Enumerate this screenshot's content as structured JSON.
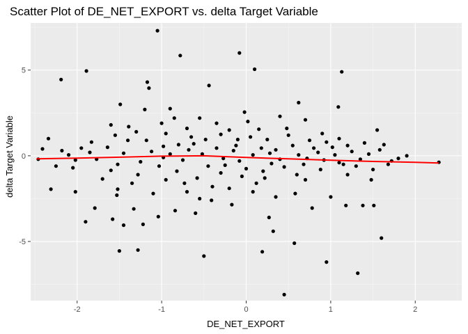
{
  "chart_data": {
    "type": "scatter",
    "title": "Scatter Plot of DE_NET_EXPORT vs. delta Target Variable",
    "xlabel": "DE_NET_EXPORT",
    "ylabel": "delta Target Variable",
    "xlim": [
      -2.55,
      2.55
    ],
    "ylim": [
      -8.45,
      7.75
    ],
    "x_ticks": [
      -2,
      -1,
      0,
      1,
      2
    ],
    "x_tick_labels": [
      "-2",
      "-1",
      "0",
      "1",
      "2"
    ],
    "y_ticks": [
      -5,
      0,
      5
    ],
    "y_tick_labels": [
      "-5",
      "0",
      "5"
    ],
    "grid": true,
    "legend": "none",
    "colors": {
      "panel_background": "#ebebeb",
      "grid_major": "#ffffff",
      "grid_minor": "#f5f5f5",
      "points": "#000000",
      "trend_line": "#ff0000"
    },
    "trend_line": {
      "x": [
        -2.48,
        -2.0,
        -1.5,
        -1.0,
        -0.5,
        0.0,
        0.5,
        1.0,
        1.5,
        2.0,
        2.28
      ],
      "y": [
        -0.18,
        -0.14,
        -0.08,
        -0.02,
        0.0,
        -0.1,
        -0.18,
        -0.26,
        -0.33,
        -0.38,
        -0.42
      ]
    },
    "series": [
      {
        "points": [
          [
            -1.05,
            7.3
          ],
          [
            -0.78,
            5.85
          ],
          [
            -0.08,
            6.0
          ],
          [
            0.1,
            5.05
          ],
          [
            1.13,
            4.9
          ],
          [
            -1.89,
            4.95
          ],
          [
            -2.19,
            4.45
          ],
          [
            -0.44,
            4.1
          ],
          [
            -1.15,
            3.95
          ],
          [
            -1.17,
            4.3
          ],
          [
            1.09,
            2.85
          ],
          [
            0.62,
            3.1
          ],
          [
            -1.49,
            3.0
          ],
          [
            -0.9,
            2.75
          ],
          [
            -0.02,
            2.55
          ],
          [
            0.02,
            2.0
          ],
          [
            -2.34,
            1.0
          ],
          [
            -2.41,
            0.4
          ],
          [
            -2.46,
            -0.2
          ],
          [
            -2.18,
            0.3
          ],
          [
            -1.83,
            0.8
          ],
          [
            -1.6,
            1.8
          ],
          [
            -1.39,
            1.7
          ],
          [
            -1.3,
            1.4
          ],
          [
            -1.18,
            0.9
          ],
          [
            -0.95,
            1.3
          ],
          [
            -0.7,
            1.6
          ],
          [
            -0.55,
            2.2
          ],
          [
            -0.35,
            1.9
          ],
          [
            -0.2,
            1.5
          ],
          [
            0.05,
            1.1
          ],
          [
            0.25,
            0.95
          ],
          [
            0.5,
            1.2
          ],
          [
            0.75,
            0.9
          ],
          [
            0.95,
            0.8
          ],
          [
            1.2,
            0.6
          ],
          [
            1.4,
            0.75
          ],
          [
            1.55,
            1.5
          ],
          [
            1.63,
            0.65
          ],
          [
            1.9,
            0.0
          ],
          [
            1.72,
            -0.3
          ],
          [
            1.5,
            -0.8
          ],
          [
            1.3,
            -0.6
          ],
          [
            1.1,
            -0.4
          ],
          [
            0.88,
            -0.8
          ],
          [
            0.68,
            -0.5
          ],
          [
            0.45,
            -0.65
          ],
          [
            0.2,
            -0.9
          ],
          [
            -0.05,
            -1.2
          ],
          [
            -0.3,
            -1.0
          ],
          [
            -0.58,
            -1.3
          ],
          [
            -0.82,
            -0.9
          ],
          [
            -1.03,
            -0.6
          ],
          [
            -1.28,
            -1.1
          ],
          [
            -1.52,
            -0.5
          ],
          [
            -1.77,
            -0.2
          ],
          [
            -2.02,
            -0.25
          ],
          [
            -2.31,
            -1.95
          ],
          [
            -2.02,
            -2.1
          ],
          [
            -1.79,
            -3.05
          ],
          [
            -1.53,
            -2.3
          ],
          [
            -1.52,
            -1.95
          ],
          [
            -1.33,
            -3.1
          ],
          [
            -1.58,
            -3.7
          ],
          [
            -1.45,
            -4.05
          ],
          [
            -1.5,
            -5.55
          ],
          [
            -1.28,
            -5.5
          ],
          [
            -1.04,
            -3.55
          ],
          [
            -0.84,
            -3.2
          ],
          [
            -0.6,
            -3.35
          ],
          [
            -0.5,
            -5.85
          ],
          [
            -0.41,
            -2.6
          ],
          [
            -0.17,
            -2.85
          ],
          [
            0.08,
            -2.1
          ],
          [
            0.27,
            -3.6
          ],
          [
            0.32,
            -4.4
          ],
          [
            0.19,
            -5.6
          ],
          [
            0.57,
            -5.1
          ],
          [
            0.45,
            -8.1
          ],
          [
            0.95,
            -6.2
          ],
          [
            0.78,
            -3.05
          ],
          [
            1.0,
            -2.4
          ],
          [
            1.18,
            -2.9
          ],
          [
            1.38,
            -2.9
          ],
          [
            1.51,
            -2.9
          ],
          [
            1.32,
            -6.85
          ],
          [
            1.6,
            -4.8
          ],
          [
            2.28,
            -0.38
          ],
          [
            -1.9,
            -3.85
          ],
          [
            -1.22,
            -4.0
          ],
          [
            -0.73,
            -1.6
          ],
          [
            -0.27,
            -0.15
          ],
          [
            0.35,
            0.35
          ],
          [
            0.85,
            0.2
          ],
          [
            1.25,
            0.25
          ],
          [
            -2.1,
            0.05
          ],
          [
            -1.64,
            0.5
          ],
          [
            -0.9,
            0.1
          ],
          [
            -0.62,
            0.7
          ],
          [
            -0.12,
            0.6
          ],
          [
            0.55,
            0.6
          ],
          [
            1.05,
            0.05
          ],
          [
            1.8,
            -0.15
          ],
          [
            -1.7,
            -1.35
          ],
          [
            -1.1,
            -2.2
          ],
          [
            -0.4,
            -1.8
          ],
          [
            0.12,
            -1.6
          ],
          [
            0.7,
            -1.4
          ],
          [
            1.2,
            -1.1
          ],
          [
            -2.25,
            -0.6
          ],
          [
            -1.45,
            0.15
          ],
          [
            -0.75,
            -0.25
          ],
          [
            -0.15,
            0.3
          ],
          [
            0.4,
            -0.2
          ],
          [
            1.45,
            0.1
          ],
          [
            -1.95,
            0.45
          ],
          [
            -1.4,
            0.9
          ],
          [
            -0.98,
            0.55
          ],
          [
            -0.48,
            0.95
          ],
          [
            0.18,
            0.45
          ],
          [
            0.62,
            0.05
          ],
          [
            1.02,
            0.5
          ],
          [
            1.58,
            0.35
          ],
          [
            -1.25,
            -0.35
          ],
          [
            -0.68,
            0.35
          ],
          [
            -0.25,
            -0.55
          ],
          [
            0.3,
            -0.45
          ],
          [
            0.92,
            -0.25
          ],
          [
            1.68,
            -0.5
          ],
          [
            -1.6,
            -0.85
          ],
          [
            -1.0,
            1.9
          ],
          [
            -0.55,
            -2.5
          ],
          [
            0.0,
            -0.75
          ],
          [
            0.48,
            1.6
          ],
          [
            1.35,
            -0.2
          ],
          [
            -1.85,
            0.2
          ],
          [
            -1.12,
            0.25
          ],
          [
            -0.8,
            0.65
          ],
          [
            -0.35,
            0.45
          ],
          [
            0.08,
            0.05
          ],
          [
            0.6,
            -1.1
          ],
          [
            1.15,
            -0.5
          ],
          [
            -2.05,
            -0.7
          ],
          [
            -1.35,
            -1.6
          ],
          [
            -0.95,
            -1.4
          ],
          [
            -0.45,
            -0.6
          ],
          [
            0.22,
            -1.3
          ],
          [
            0.8,
            0.45
          ],
          [
            1.48,
            -1.4
          ],
          [
            -1.2,
            2.7
          ],
          [
            -0.65,
            1.1
          ],
          [
            -0.1,
            0.95
          ],
          [
            0.4,
            2.3
          ],
          [
            0.9,
            1.3
          ],
          [
            -1.55,
            1.2
          ],
          [
            -0.85,
            2.2
          ],
          [
            -0.3,
            1.25
          ],
          [
            0.15,
            1.55
          ],
          [
            0.7,
            2.1
          ],
          [
            -0.2,
            -1.9
          ],
          [
            0.35,
            -2.4
          ],
          [
            -0.7,
            -2.1
          ],
          [
            0.58,
            -2.2
          ],
          [
            -0.98,
            -0.1
          ],
          [
            -0.52,
            0.1
          ],
          [
            -0.08,
            -0.3
          ],
          [
            0.28,
            0.15
          ],
          [
            0.72,
            -0.15
          ],
          [
            1.1,
            1.0
          ]
        ]
      }
    ]
  }
}
